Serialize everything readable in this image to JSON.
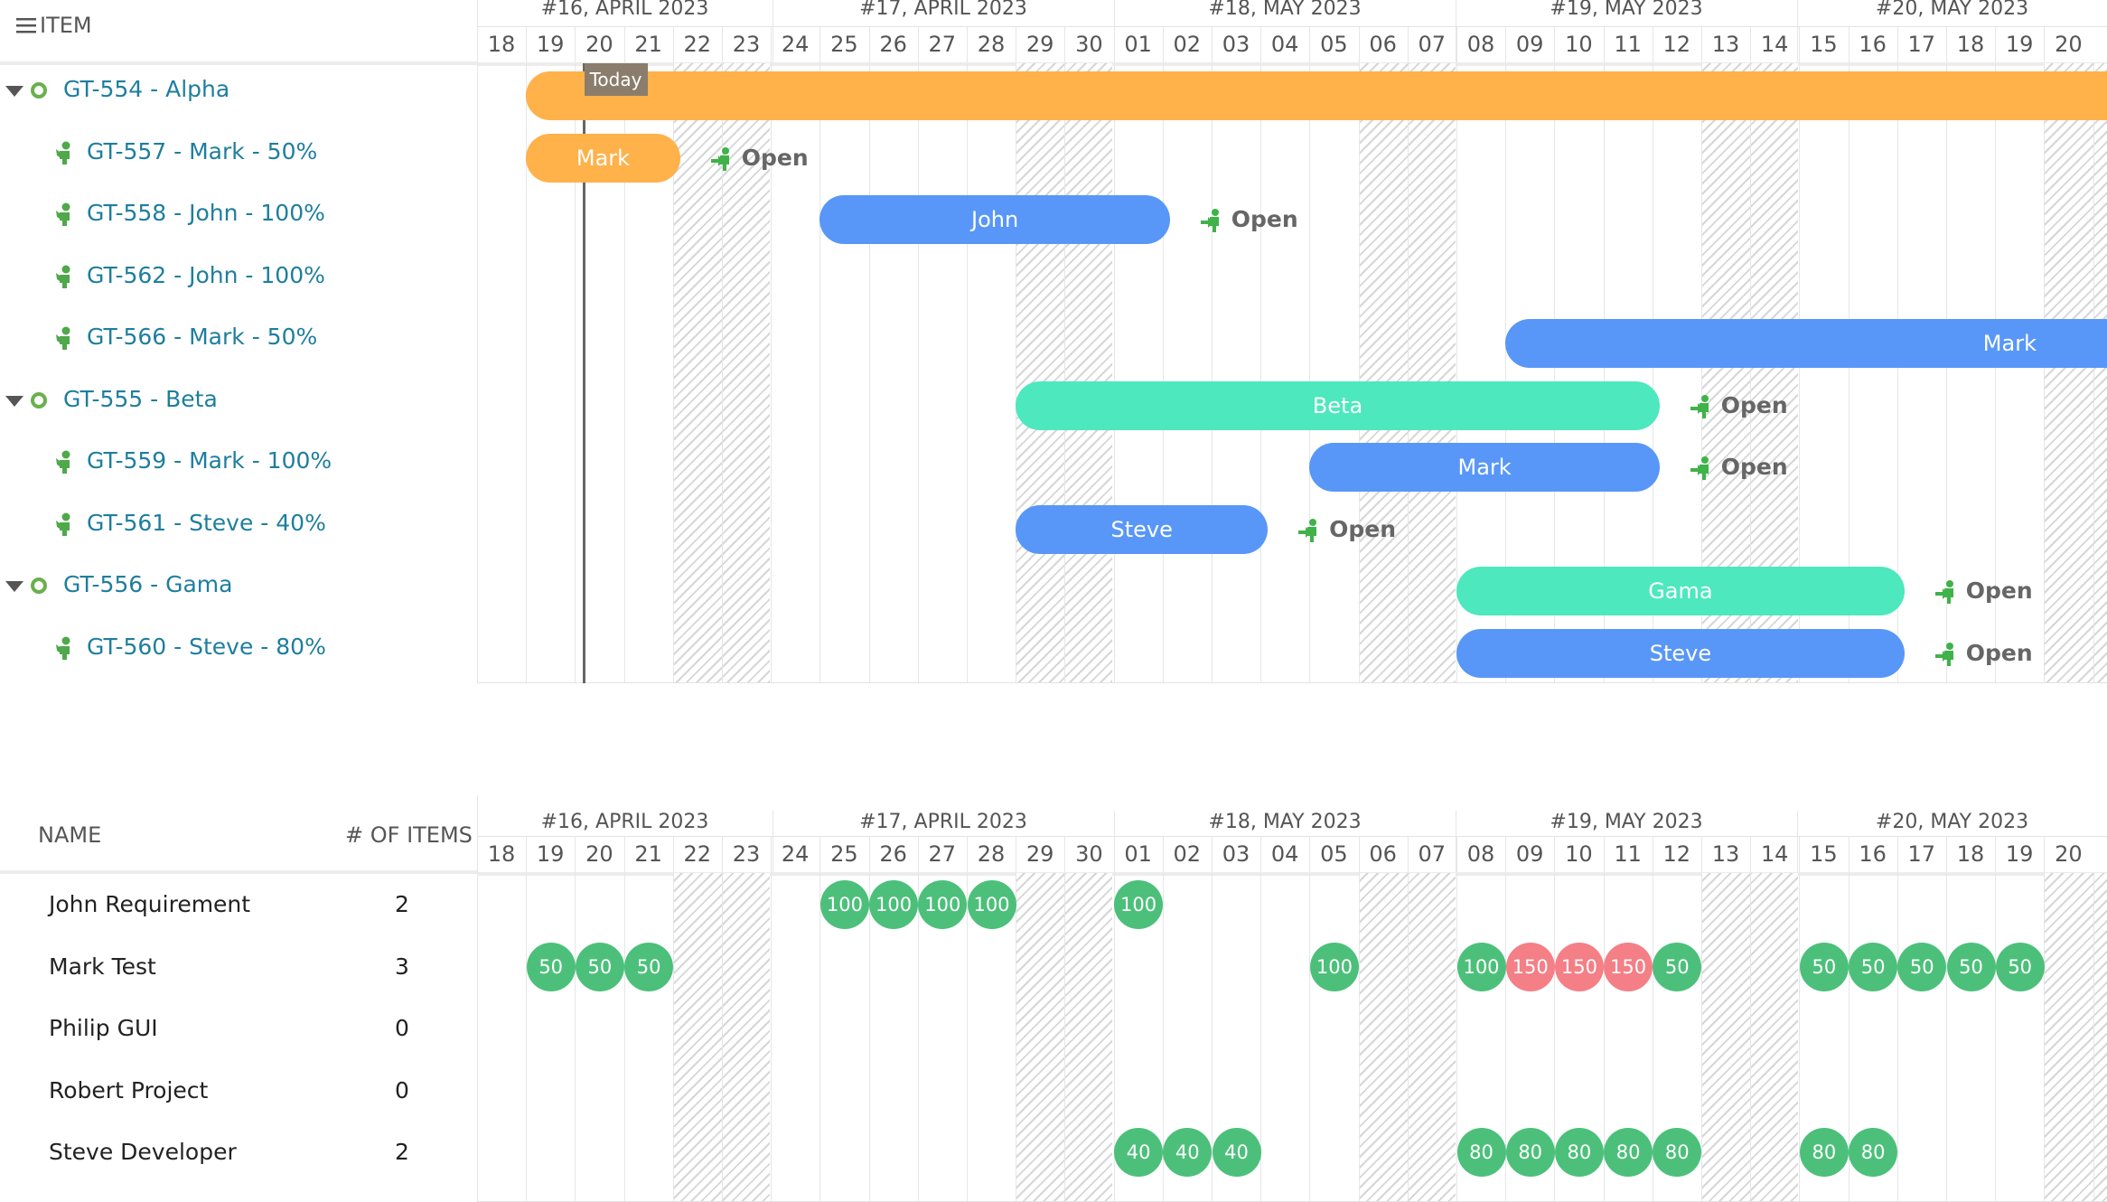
{
  "top": {
    "column_header": "ITEM",
    "today_label": "Today",
    "weeks": [
      "#16, APRIL 2023",
      "#17, APRIL 2023",
      "#18, MAY 2023",
      "#19, MAY 2023",
      "#20, MAY 2023"
    ],
    "days": [
      "18",
      "19",
      "20",
      "21",
      "22",
      "23",
      "24",
      "25",
      "26",
      "27",
      "28",
      "29",
      "30",
      "01",
      "02",
      "03",
      "04",
      "05",
      "06",
      "07",
      "08",
      "09",
      "10",
      "11",
      "12",
      "13",
      "14",
      "15",
      "16",
      "17",
      "18",
      "19",
      "20"
    ],
    "rows": [
      {
        "label": "GT-554 - Alpha",
        "type": "group"
      },
      {
        "label": "GT-557 - Mark - 50%",
        "type": "task"
      },
      {
        "label": "GT-558 - John - 100%",
        "type": "task"
      },
      {
        "label": "GT-562 - John - 100%",
        "type": "task"
      },
      {
        "label": "GT-566 - Mark - 50%",
        "type": "task"
      },
      {
        "label": "GT-555 - Beta",
        "type": "group"
      },
      {
        "label": "GT-559 - Mark - 100%",
        "type": "task"
      },
      {
        "label": "GT-561 - Steve - 40%",
        "type": "task"
      },
      {
        "label": "GT-556 - Gama",
        "type": "group"
      },
      {
        "label": "GT-560 - Steve - 80%",
        "type": "task"
      }
    ],
    "bars": [
      {
        "row": 0,
        "label": "",
        "start": 1,
        "end": 33,
        "color": "#ffb14a"
      },
      {
        "row": 1,
        "label": "Mark",
        "start": 1,
        "end": 4,
        "color": "#ffb14a"
      },
      {
        "row": 2,
        "label": "John",
        "start": 7,
        "end": 14,
        "color": "#5897f7"
      },
      {
        "row": 4,
        "label": "Mark",
        "start": 21,
        "end": 33,
        "color": "#5897f7"
      },
      {
        "row": 5,
        "label": "Beta",
        "start": 11,
        "end": 24,
        "color": "#4de8bd"
      },
      {
        "row": 6,
        "label": "Mark",
        "start": 17,
        "end": 24,
        "color": "#5897f7"
      },
      {
        "row": 7,
        "label": "Steve",
        "start": 11,
        "end": 16,
        "color": "#5897f7"
      },
      {
        "row": 8,
        "label": "Gama",
        "start": 20,
        "end": 29,
        "color": "#4de8bd"
      },
      {
        "row": 9,
        "label": "Steve",
        "start": 20,
        "end": 29,
        "color": "#5897f7"
      }
    ],
    "open_tags": [
      {
        "row": 1,
        "col": 4.7,
        "label": "Open"
      },
      {
        "row": 2,
        "col": 14.7,
        "label": "Open"
      },
      {
        "row": 5,
        "col": 24.7,
        "label": "Open"
      },
      {
        "row": 6,
        "col": 24.7,
        "label": "Open"
      },
      {
        "row": 7,
        "col": 16.7,
        "label": "Open"
      },
      {
        "row": 8,
        "col": 29.7,
        "label": "Open"
      },
      {
        "row": 9,
        "col": 29.7,
        "label": "Open"
      }
    ]
  },
  "bottom": {
    "name_header": "NAME",
    "count_header": "# OF ITEMS",
    "resources": [
      {
        "name": "John Requirement",
        "count": "2"
      },
      {
        "name": "Mark Test",
        "count": "3"
      },
      {
        "name": "Philip GUI",
        "count": "0"
      },
      {
        "name": "Robert Project",
        "count": "0"
      },
      {
        "name": "Steve Developer",
        "count": "2"
      }
    ],
    "loads": [
      {
        "row": 0,
        "cells": [
          [
            7,
            "100"
          ],
          [
            8,
            "100"
          ],
          [
            9,
            "100"
          ],
          [
            10,
            "100"
          ],
          [
            13,
            "100"
          ]
        ]
      },
      {
        "row": 1,
        "cells": [
          [
            1,
            "50"
          ],
          [
            2,
            "50"
          ],
          [
            3,
            "50"
          ],
          [
            17,
            "100"
          ],
          [
            20,
            "100"
          ],
          [
            21,
            "150"
          ],
          [
            22,
            "150"
          ],
          [
            23,
            "150"
          ],
          [
            24,
            "50"
          ],
          [
            27,
            "50"
          ],
          [
            28,
            "50"
          ],
          [
            29,
            "50"
          ],
          [
            30,
            "50"
          ],
          [
            31,
            "50"
          ]
        ]
      },
      {
        "row": 4,
        "cells": [
          [
            13,
            "40"
          ],
          [
            14,
            "40"
          ],
          [
            15,
            "40"
          ],
          [
            20,
            "80"
          ],
          [
            21,
            "80"
          ],
          [
            22,
            "80"
          ],
          [
            23,
            "80"
          ],
          [
            24,
            "80"
          ],
          [
            27,
            "80"
          ],
          [
            28,
            "80"
          ]
        ]
      }
    ],
    "overload_value": "150"
  },
  "colors": {
    "orange": "#ffb14a",
    "blue": "#5897f7",
    "teal": "#4de8bd",
    "green_load": "#4cc07a",
    "red_load": "#f47f86",
    "link": "#1e7e9e",
    "icon_green": "#4fa84a"
  }
}
